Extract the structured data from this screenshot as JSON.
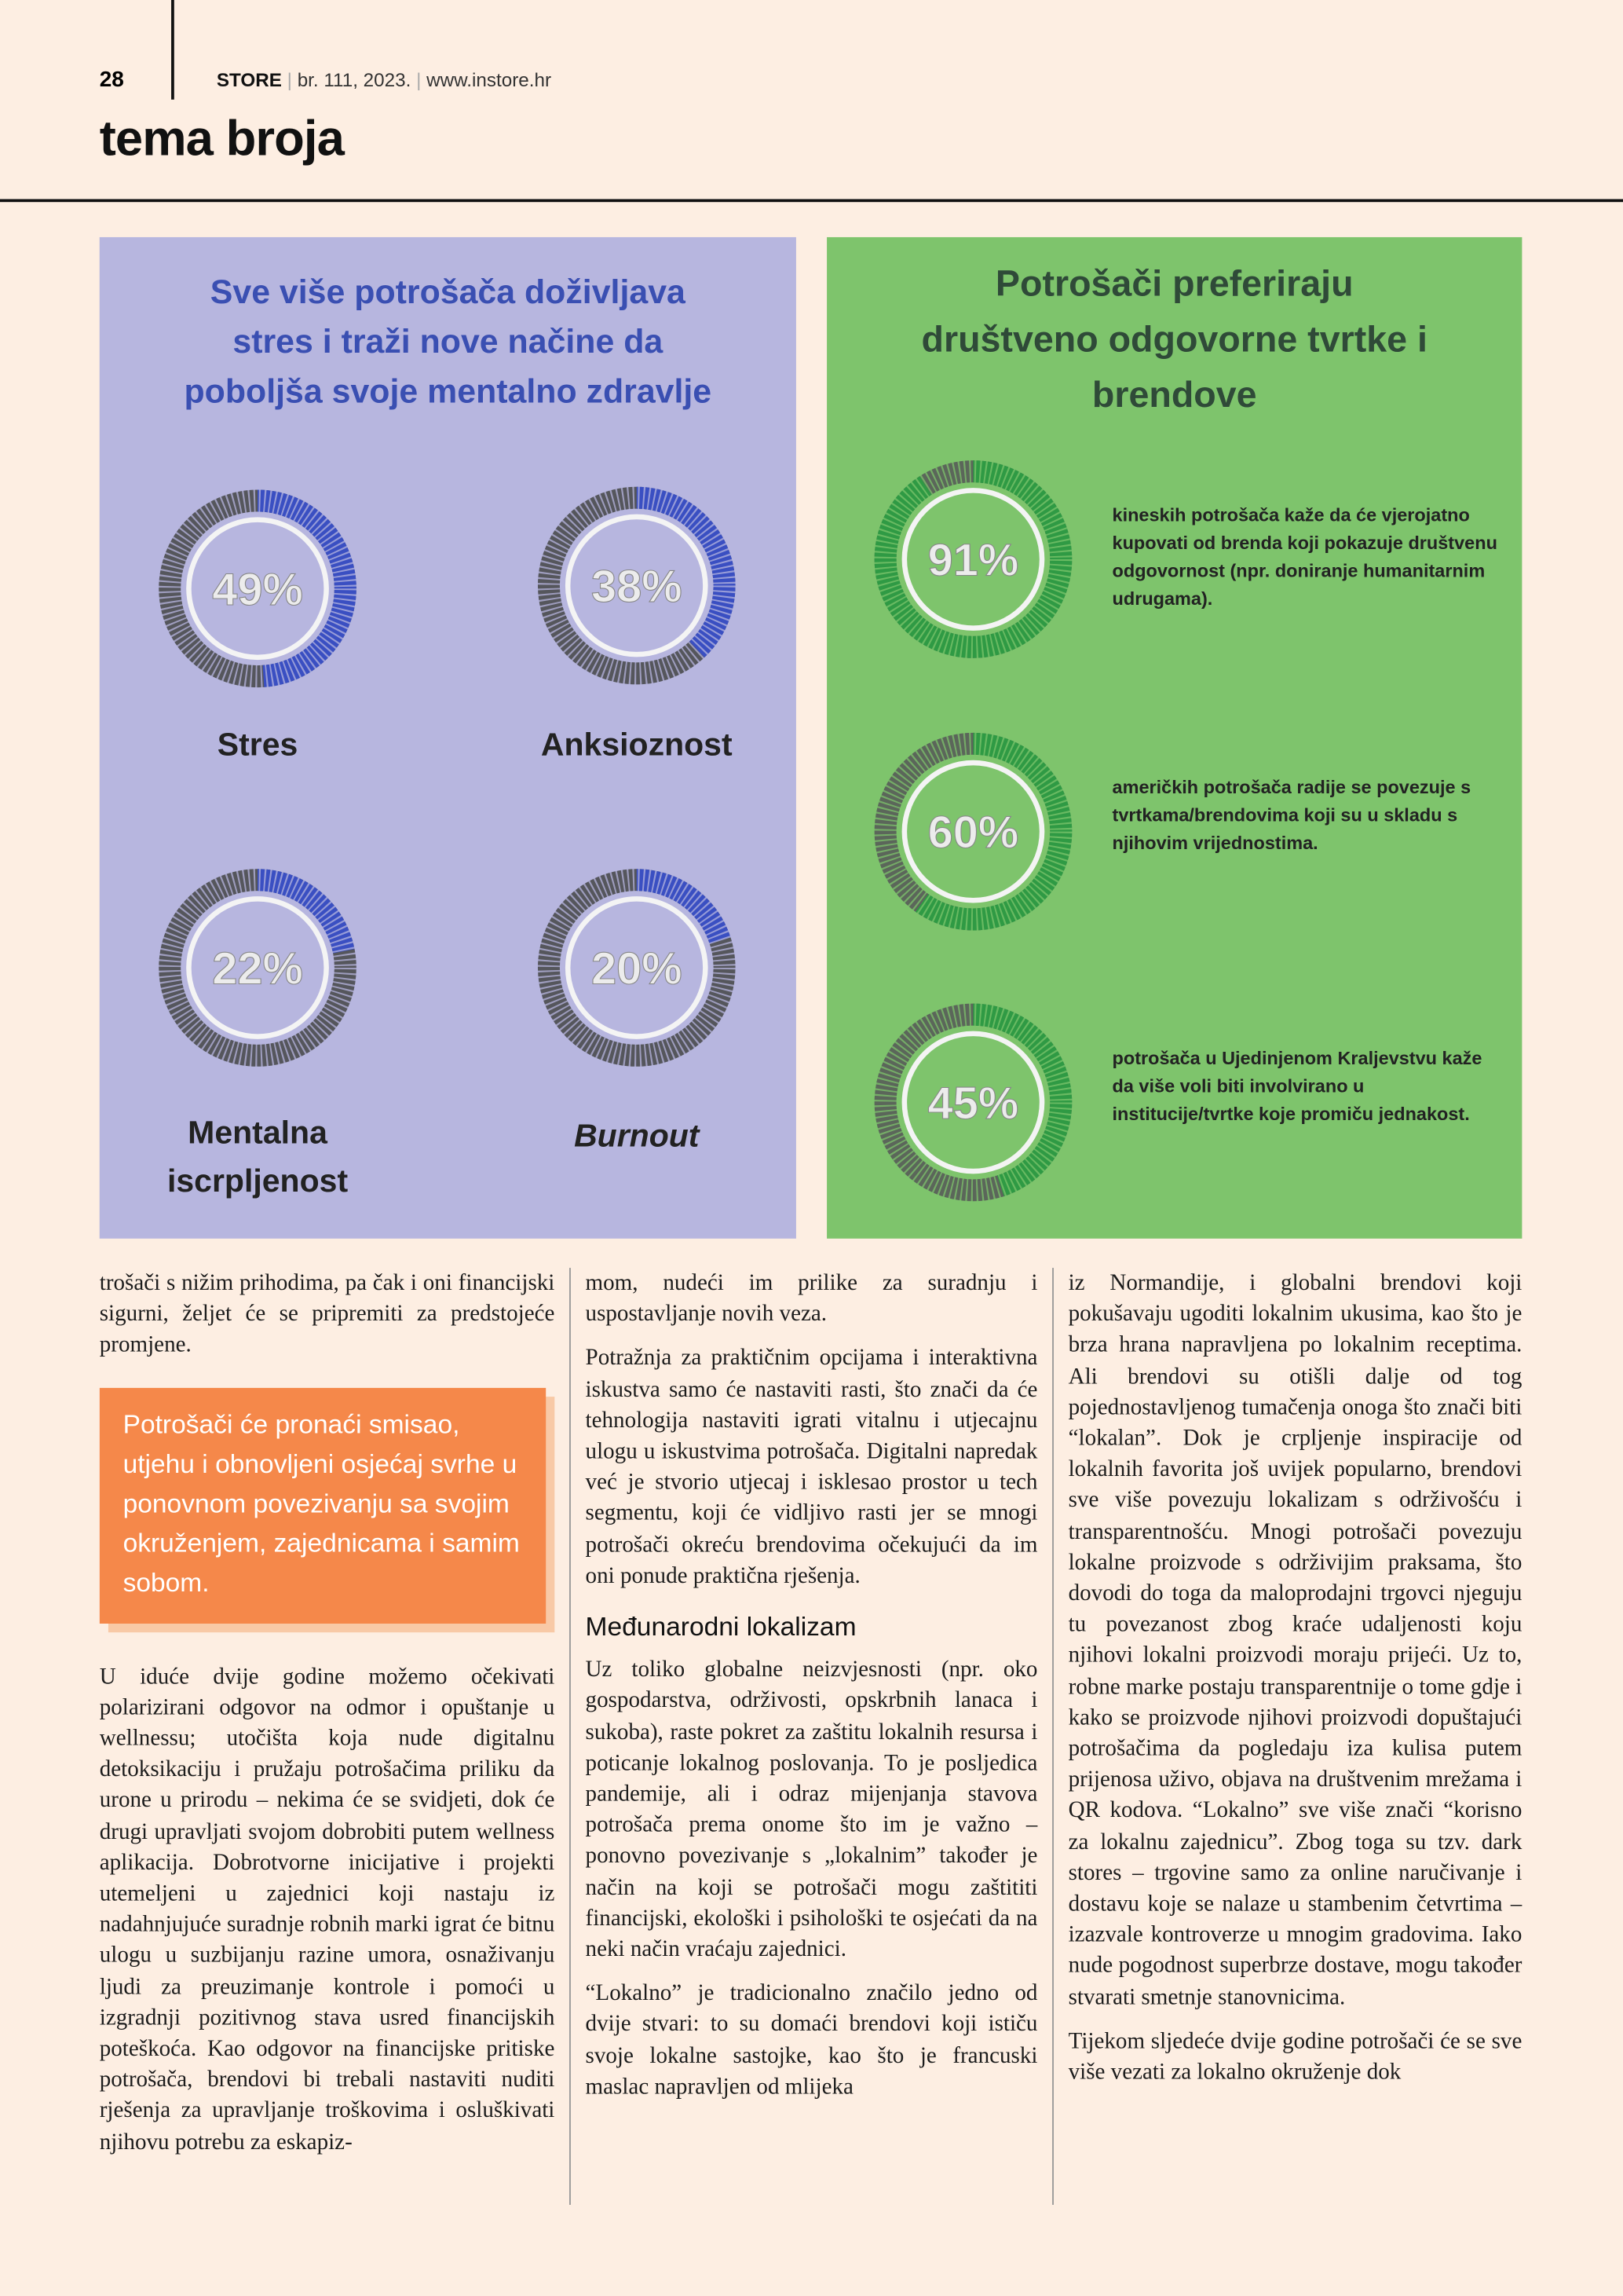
{
  "header": {
    "page_number": "28",
    "brand": "STORE",
    "issue": "br. 111, 2023.",
    "website": "www.instore.hr",
    "section": "tema broja"
  },
  "infographics": [
    {
      "title_lines": [
        "Sve više potrošača doživljava",
        "stres i traži nove načine da",
        "poboljša svoje mentalno zdravlje"
      ],
      "items": [
        {
          "value": 49,
          "value_label": "49%",
          "label_lines": [
            "Stres"
          ]
        },
        {
          "value": 38,
          "value_label": "38%",
          "label_lines": [
            "Anksioznost"
          ]
        },
        {
          "value": 22,
          "value_label": "22%",
          "label_lines": [
            "Mentalna",
            "iscrpljenost"
          ]
        },
        {
          "value": 20,
          "value_label": "20%",
          "label_lines": [
            "Burnout"
          ]
        }
      ]
    },
    {
      "title_lines": [
        "Potrošači preferiraju",
        "društveno odgovorne tvrtke i",
        "brendove"
      ],
      "items": [
        {
          "value": 91,
          "value_label": "91%",
          "text": "kineskih potrošača kaže da će vjerojatno kupovati od brenda koji pokazuje društvenu odgovornost (npr. doniranje humanitarnim udrugama)."
        },
        {
          "value": 60,
          "value_label": "60%",
          "text": "američkih potrošača radije se povezuje s tvrtkama/brendovima koji su u skladu s njihovim vrijednostima."
        },
        {
          "value": 45,
          "value_label": "45%",
          "text": "potrošača u Ujedinjenom Kraljevstvu kaže da više voli biti involvirano u institucije/tvrtke koje promiču jednakost."
        }
      ]
    }
  ],
  "columns": [
    [
      {
        "type": "p",
        "text": "trošači s nižim prihodima, pa čak i oni financijski sigurni, željet će se pripremiti za predstojeće promjene."
      },
      {
        "type": "quote",
        "text": "Potrošači će pronaći smisao, utjehu i obnovljeni osjećaj svrhe u ponovnom povezivanju sa svojim okruženjem, zajednicama i samim sobom."
      },
      {
        "type": "p",
        "text": "U iduće dvije godine možemo očekivati polarizirani odgovor na odmor i opuštanje u wellnessu; utočišta koja nude digitalnu detoksikaciju i pružaju potrošačima priliku da urone u prirodu – nekima će se svidjeti, dok će drugi upravljati svojom dobrobiti putem wellness aplikacija. Dobrotvorne inicijative i projekti utemeljeni u zajednici koji nastaju iz nadahnjujuće suradnje robnih marki igrat će bitnu ulogu u suzbijanju razine umora, osnaživanju ljudi za preuzimanje kontrole i pomoći u izgradnji pozitivnog stava usred financijskih poteškoća. Kao odgovor na financijske pritiske potrošača, brendovi bi trebali nastaviti nuditi rješenja za upravljanje troškovima i osluškivati njihovu potrebu za eskapiz-"
      }
    ],
    [
      {
        "type": "p",
        "text": "mom, nudeći im prilike za suradnju i uspostavljanje novih veza."
      },
      {
        "type": "p",
        "text": "Potražnja za praktičnim opcijama i interaktivna iskustva samo će nastaviti rasti, što znači da će tehnologija nastaviti igrati vitalnu i utjecajnu ulogu u iskustvima potrošača. Digitalni napredak već je stvorio utjecaj i isklesao prostor u tech segmentu, koji će vidljivo rasti jer se mnogi potrošači okreću brendovima očekujući da im oni ponude praktična rješenja."
      },
      {
        "type": "h",
        "text": "Međunarodni lokalizam"
      },
      {
        "type": "p",
        "text": "Uz toliko globalne neizvjesnosti (npr. oko gospodarstva, održivosti, opskrbnih lanaca i sukoba), raste pokret za zaštitu lokalnih resursa i poticanje lokalnog poslovanja. To je posljedica pandemije, ali i odraz mijenjanja stavova potrošača prema onome što im je važno – ponovno povezivanje s „lokalnim” također je način na koji se potrošači mogu zaštititi financijski, ekološki i psihološki te osjećati da na neki način vraćaju zajednici."
      },
      {
        "type": "p",
        "text": "“Lokalno” je tradicionalno značilo jedno od dvije stvari: to su domaći brendovi koji ističu svoje lokalne sastojke, kao što je francuski maslac napravljen od mlijeka"
      }
    ],
    [
      {
        "type": "p",
        "text": "iz Normandije, i globalni brendovi koji pokušavaju ugoditi lokalnim ukusima, kao što je brza hrana napravljena po lokalnim receptima. Ali brendovi su otišli dalje od tog pojednostavljenog tumačenja onoga što znači biti “lokalan”. Dok je crpljenje inspiracije od lokalnih favorita još uvijek popularno, brendovi sve više povezuju lokalizam s održivošću i transparentnošću. Mnogi potrošači povezuju lokalne proizvode s održivijim praksama, što dovodi do toga da maloprodajni trgovci njeguju tu povezanost zbog kraće udaljenosti koju njihovi lokalni proizvodi moraju prijeći. Uz to, robne marke postaju transparentnije o tome gdje i kako se proizvode njihovi proizvodi dopuštajući potrošačima da pogledaju iza kulisa putem prijenosa uživo, objava na društvenim mrežama i QR kodova. “Lokalno” sve više znači “korisno za lokalnu zajednicu”. Zbog toga su tzv. dark stores – trgovine samo za online naručivanje i dostavu koje se nalaze u stambenim četvrtima – izazvale kontroverze u mnogim gradovima. Iako nude pogodnost superbrze dostave, mogu također stvarati smetnje stanovnicima."
      },
      {
        "type": "p",
        "text": "Tijekom sljedeće dvije godine potrošači će se sve više vezati za lokalno okruženje dok"
      }
    ]
  ]
}
